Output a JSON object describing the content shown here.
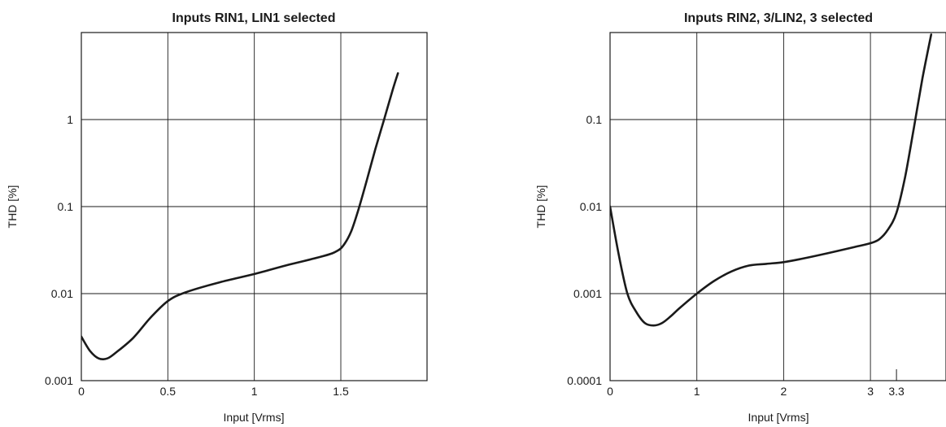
{
  "chart_data": [
    {
      "type": "line",
      "title": "Inputs RIN1, LIN1 selected",
      "xlabel": "Input [Vrms]",
      "ylabel": "THD [%]",
      "xlim": [
        0,
        2.0
      ],
      "ylim": [
        0.001,
        10
      ],
      "yscale": "log",
      "grid": true,
      "x_ticks": [
        "0",
        "0.5",
        "1",
        "1.5"
      ],
      "x_tick_values": [
        0,
        0.5,
        1,
        1.5
      ],
      "y_ticks": [
        "0.001",
        "0.01",
        "0.1",
        "1"
      ],
      "y_tick_values": [
        0.001,
        0.01,
        0.1,
        1
      ],
      "series": [
        {
          "x": [
            0,
            0.05,
            0.1,
            0.15,
            0.2,
            0.3,
            0.4,
            0.5,
            0.6,
            0.8,
            1.0,
            1.2,
            1.4,
            1.48,
            1.52,
            1.56,
            1.6,
            1.65,
            1.7,
            1.75,
            1.8,
            1.83
          ],
          "y": [
            0.0032,
            0.0022,
            0.0018,
            0.0018,
            0.0021,
            0.0031,
            0.0053,
            0.0082,
            0.0103,
            0.0135,
            0.0168,
            0.0215,
            0.027,
            0.031,
            0.037,
            0.052,
            0.09,
            0.2,
            0.46,
            1.0,
            2.2,
            3.4
          ]
        }
      ]
    },
    {
      "type": "line",
      "title": "Inputs RIN2, 3/LIN2, 3 selected",
      "xlabel": "Input [Vrms]",
      "ylabel": "THD [%]",
      "xlim": [
        0,
        3.7
      ],
      "ylim": [
        0.0001,
        1
      ],
      "yscale": "log",
      "grid": true,
      "x_ticks": [
        "0",
        "1",
        "2",
        "3",
        "3.3"
      ],
      "x_tick_values": [
        0,
        1,
        2,
        3,
        3.3
      ],
      "y_ticks": [
        "0.0001",
        "0.001",
        "0.01",
        "0.1"
      ],
      "y_tick_values": [
        0.0001,
        0.001,
        0.01,
        0.1
      ],
      "series": [
        {
          "x": [
            0,
            0.1,
            0.2,
            0.3,
            0.4,
            0.5,
            0.6,
            0.7,
            0.8,
            1.0,
            1.2,
            1.4,
            1.6,
            1.8,
            2.0,
            2.2,
            2.5,
            2.8,
            3.0,
            3.1,
            3.2,
            3.3,
            3.4,
            3.5,
            3.6,
            3.7
          ],
          "y": [
            0.01,
            0.0028,
            0.001,
            0.00062,
            0.00046,
            0.00043,
            0.00046,
            0.00055,
            0.00068,
            0.001,
            0.0014,
            0.0018,
            0.0021,
            0.0022,
            0.0023,
            0.0025,
            0.0029,
            0.0034,
            0.0038,
            0.0042,
            0.0054,
            0.0085,
            0.022,
            0.08,
            0.3,
            0.95
          ]
        }
      ]
    }
  ]
}
